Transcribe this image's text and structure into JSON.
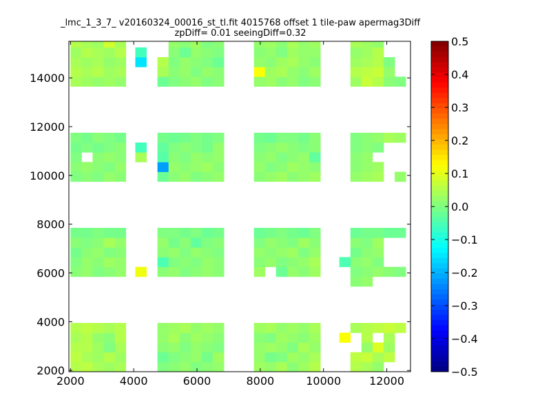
{
  "chart_data": {
    "type": "heatmap",
    "title_line1": "_lmc_1_3_7_ v20160324_00016_st_tl.fit 4015768 offset 1 tile-paw apermag3Diff",
    "title_line2": "zpDiff= 0.01 seeingDiff=0.32",
    "xlabel": "",
    "ylabel": "",
    "xlim": [
      1950,
      12750
    ],
    "ylim": [
      1950,
      15500
    ],
    "x_ticks": [
      "2000",
      "4000",
      "6000",
      "8000",
      "10000",
      "12000"
    ],
    "y_ticks": [
      "2000",
      "4000",
      "6000",
      "8000",
      "10000",
      "12000",
      "14000"
    ],
    "colorbar": {
      "colormap": "jet",
      "vmin": -0.5,
      "vmax": 0.5,
      "ticks": [
        "0.5",
        "0.4",
        "0.3",
        "0.2",
        "0.1",
        "0.0",
        "−0.1",
        "−0.2",
        "−0.3",
        "−0.4",
        "−0.5"
      ]
    },
    "grid": false,
    "cell_size": [
      350,
      400
    ],
    "x_centers": [
      2175,
      2525,
      2875,
      3225,
      3575,
      4225,
      4925,
      5275,
      5625,
      5975,
      6325,
      6675,
      7975,
      8325,
      8675,
      9025,
      9375,
      9725,
      11025,
      11375,
      11725,
      12075,
      12425
    ],
    "y_centers": [
      2150,
      2550,
      2950,
      3350,
      3750,
      6050,
      6450,
      6850,
      7250,
      7650,
      9950,
      10350,
      10750,
      11150,
      11550,
      13850,
      14250,
      14650,
      15050,
      15450
    ],
    "extra_cells": [
      {
        "x": 11025,
        "y": 5650,
        "value": 0.01
      },
      {
        "x": 11375,
        "y": 5650,
        "value": 0.02
      },
      {
        "x": 10675,
        "y": 6450,
        "value": -0.05
      },
      {
        "x": 10675,
        "y": 3350,
        "value": 0.12
      }
    ],
    "values": [
      [
        0.05,
        0.06,
        0.04,
        0.03,
        0.04,
        null,
        0.0,
        0.01,
        0.02,
        0.0,
        0.01,
        0.02,
        0.03,
        0.02,
        0.04,
        0.01,
        0.03,
        0.05,
        0.05,
        0.04,
        0.02,
        null,
        null
      ],
      [
        0.06,
        0.04,
        0.03,
        0.05,
        0.03,
        null,
        -0.02,
        0.0,
        0.01,
        0.02,
        -0.01,
        0.03,
        0.02,
        -0.01,
        0.0,
        0.03,
        0.02,
        0.04,
        0.06,
        0.07,
        0.04,
        0.06,
        null
      ],
      [
        0.05,
        0.05,
        0.03,
        0.0,
        0.04,
        null,
        0.01,
        0.02,
        0.0,
        0.02,
        0.01,
        0.0,
        0.02,
        0.03,
        0.02,
        0.0,
        0.04,
        0.02,
        null,
        0.02,
        0.09,
        0.03,
        null
      ],
      [
        0.04,
        0.05,
        0.02,
        0.01,
        0.05,
        null,
        0.02,
        0.04,
        0.01,
        0.03,
        0.02,
        0.01,
        0.01,
        0.0,
        0.03,
        0.02,
        0.01,
        0.03,
        null,
        0.05,
        null,
        0.04,
        null
      ],
      [
        0.05,
        0.06,
        0.05,
        0.04,
        0.05,
        null,
        0.02,
        0.03,
        0.04,
        0.02,
        0.03,
        0.02,
        0.03,
        0.04,
        0.02,
        0.03,
        0.02,
        0.04,
        0.04,
        0.05,
        0.06,
        0.07,
        0.06
      ],
      [
        0.01,
        0.02,
        0.0,
        0.01,
        0.02,
        0.11,
        0.01,
        0.02,
        0.0,
        0.01,
        0.02,
        0.01,
        0.03,
        null,
        -0.02,
        0.02,
        0.01,
        0.03,
        0.0,
        0.01,
        0.02,
        0.01,
        0.0
      ],
      [
        0.0,
        0.02,
        0.01,
        0.03,
        0.02,
        null,
        -0.05,
        0.0,
        0.01,
        0.0,
        0.02,
        0.01,
        0.01,
        0.02,
        0.0,
        0.01,
        0.02,
        0.04,
        0.01,
        0.02,
        0.0,
        null,
        null
      ],
      [
        -0.01,
        0.01,
        0.02,
        0.0,
        0.01,
        null,
        0.01,
        0.02,
        0.0,
        0.02,
        0.01,
        0.0,
        0.02,
        0.01,
        0.02,
        0.03,
        0.0,
        0.02,
        -0.01,
        0.01,
        0.02,
        null,
        null
      ],
      [
        0.01,
        0.0,
        0.01,
        0.04,
        0.02,
        null,
        0.02,
        -0.01,
        0.01,
        -0.03,
        0.0,
        0.01,
        0.0,
        0.02,
        0.01,
        0.0,
        0.03,
        0.01,
        0.01,
        0.0,
        0.03,
        null,
        null
      ],
      [
        -0.01,
        -0.01,
        0.0,
        -0.01,
        -0.01,
        null,
        0.0,
        0.0,
        -0.01,
        0.0,
        -0.02,
        -0.01,
        -0.02,
        -0.01,
        0.0,
        -0.01,
        -0.02,
        0.0,
        -0.02,
        -0.01,
        -0.01,
        -0.02,
        -0.02
      ],
      [
        0.0,
        0.01,
        0.0,
        0.02,
        0.01,
        null,
        -0.02,
        0.01,
        0.02,
        0.0,
        0.01,
        0.02,
        0.01,
        0.02,
        0.03,
        0.01,
        0.02,
        0.03,
        0.02,
        0.03,
        0.04,
        null,
        0.02
      ],
      [
        0.01,
        0.02,
        0.01,
        0.0,
        0.02,
        null,
        -0.22,
        0.02,
        0.01,
        0.02,
        0.03,
        0.01,
        0.02,
        0.0,
        0.01,
        0.03,
        0.02,
        0.01,
        0.01,
        0.02,
        0.03,
        null,
        null
      ],
      [
        0.0,
        null,
        0.01,
        0.02,
        0.01,
        0.04,
        -0.04,
        0.01,
        0.0,
        0.02,
        0.01,
        0.02,
        0.01,
        0.02,
        0.0,
        0.01,
        0.02,
        -0.03,
        0.01,
        0.02,
        null,
        null,
        null
      ],
      [
        -0.01,
        0.0,
        -0.01,
        0.0,
        0.01,
        -0.06,
        -0.03,
        0.0,
        0.01,
        0.0,
        -0.01,
        0.02,
        0.0,
        0.01,
        0.02,
        0.01,
        0.0,
        0.01,
        0.0,
        0.01,
        0.0,
        null,
        null
      ],
      [
        0.0,
        -0.01,
        0.01,
        0.0,
        -0.01,
        null,
        -0.01,
        -0.02,
        -0.01,
        0.0,
        -0.01,
        0.0,
        -0.01,
        -0.02,
        0.0,
        0.0,
        -0.01,
        0.01,
        0.0,
        0.01,
        0.02,
        0.04,
        0.03
      ],
      [
        0.04,
        0.03,
        0.02,
        0.03,
        0.02,
        null,
        -0.02,
        0.0,
        0.01,
        0.02,
        0.0,
        0.01,
        0.02,
        0.03,
        0.01,
        0.02,
        0.0,
        0.01,
        0.03,
        0.07,
        0.05,
        0.01,
        0.0
      ],
      [
        0.05,
        0.04,
        0.05,
        0.03,
        0.04,
        null,
        0.04,
        0.01,
        0.02,
        0.0,
        0.02,
        0.01,
        0.12,
        0.03,
        0.04,
        0.02,
        0.01,
        0.03,
        0.05,
        0.06,
        0.07,
        0.02,
        null
      ],
      [
        0.04,
        0.03,
        0.04,
        0.02,
        0.03,
        -0.15,
        0.05,
        0.0,
        0.02,
        0.01,
        0.0,
        -0.02,
        0.02,
        0.01,
        0.03,
        0.04,
        0.02,
        0.01,
        0.03,
        0.04,
        0.05,
        0.0,
        null
      ],
      [
        0.03,
        0.05,
        0.04,
        0.03,
        0.05,
        -0.06,
        null,
        0.01,
        -0.02,
        0.02,
        0.01,
        0.0,
        0.01,
        0.02,
        0.0,
        0.03,
        0.02,
        0.02,
        0.02,
        0.03,
        0.05,
        null,
        null
      ],
      [
        0.05,
        0.04,
        0.03,
        0.08,
        0.04,
        null,
        null,
        0.02,
        0.01,
        0.03,
        0.0,
        0.01,
        0.02,
        0.03,
        0.01,
        0.04,
        0.02,
        0.03,
        0.04,
        0.03,
        0.02,
        null,
        null
      ]
    ]
  }
}
